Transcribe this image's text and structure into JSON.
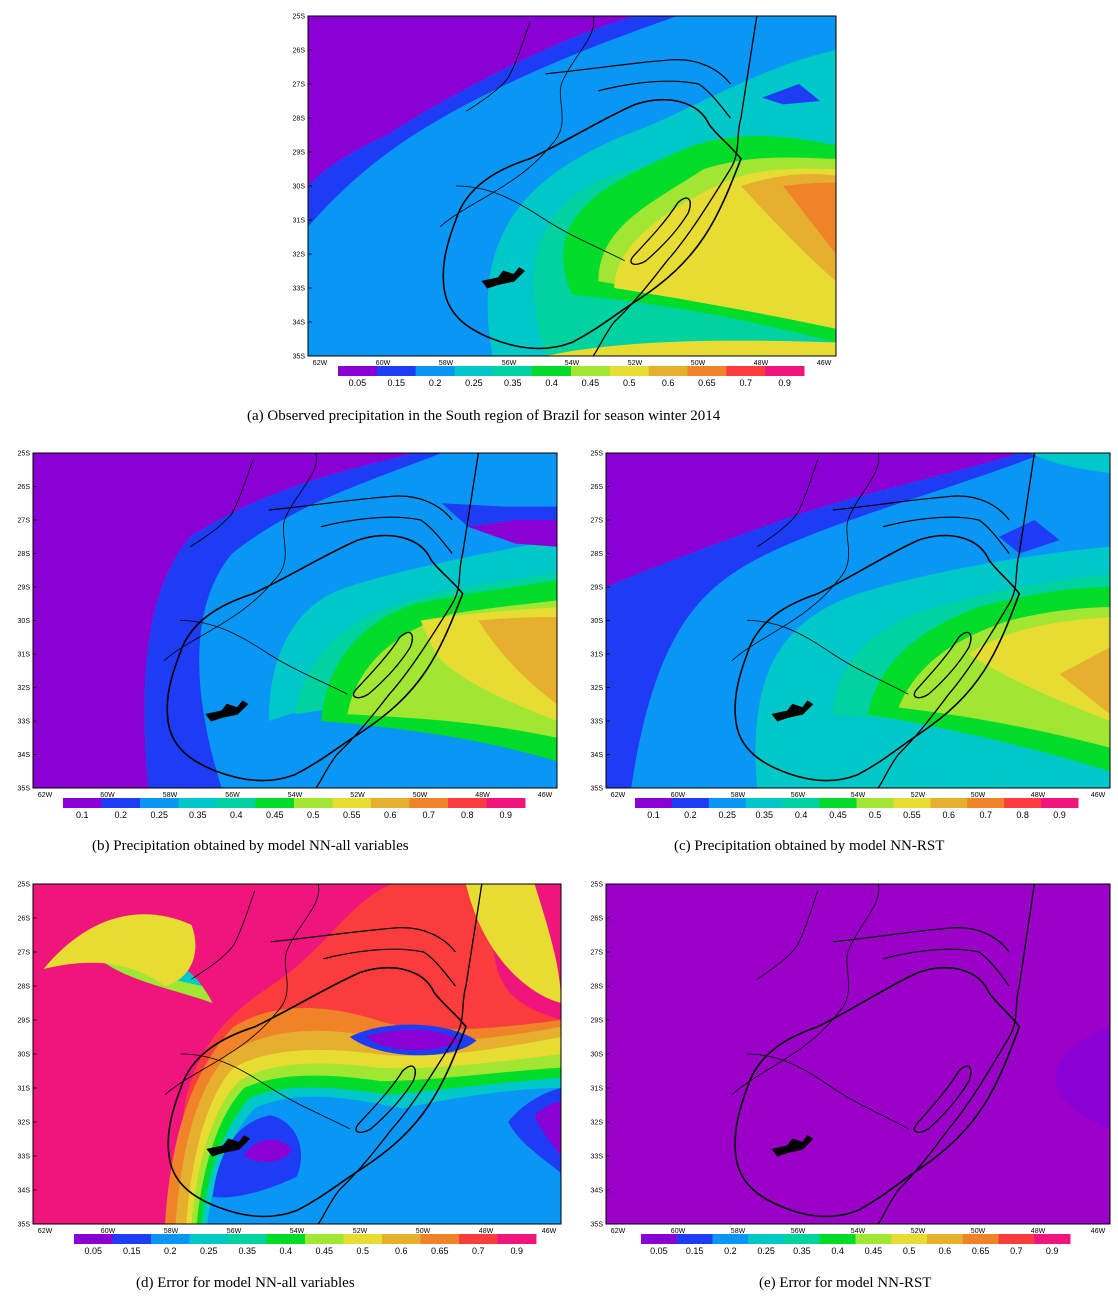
{
  "lat_labels": [
    "25S",
    "26S",
    "27S",
    "28S",
    "29S",
    "30S",
    "31S",
    "32S",
    "33S",
    "34S",
    "35S"
  ],
  "lon_labels": [
    "62W",
    "60W",
    "58W",
    "56W",
    "54W",
    "52W",
    "50W",
    "48W",
    "46W"
  ],
  "palette": {
    "purple": "#8a00d4",
    "deep_purple": "#9a00c8",
    "blue": "#1f3cf5",
    "sky": "#0a96f5",
    "cyan": "#00c8c8",
    "teal": "#00d2a0",
    "green": "#00dc28",
    "lime": "#a0e632",
    "yellow": "#e6dc32",
    "gold": "#e6af2d",
    "orange": "#f08228",
    "red": "#fa3c3c",
    "pink": "#f0147d"
  },
  "panels": [
    {
      "id": "a",
      "caption": "(a) Observed precipitation in the South region of Brazil for season winter 2014",
      "colorbar": {
        "labels": [
          "0.05",
          "0.15",
          "0.2",
          "0.25",
          "0.35",
          "0.4",
          "0.45",
          "0.5",
          "0.6",
          "0.65",
          "0.7",
          "0.9"
        ],
        "colors": [
          "#8a00d4",
          "#1f3cf5",
          "#0a96f5",
          "#00c8c8",
          "#00d2a0",
          "#00dc28",
          "#a0e632",
          "#e6dc32",
          "#e6af2d",
          "#f08228",
          "#fa3c3c",
          "#f0147d"
        ]
      }
    },
    {
      "id": "b",
      "caption": "(b) Precipitation obtained by model NN-all variables",
      "colorbar": {
        "labels": [
          "0.1",
          "0.2",
          "0.25",
          "0.35",
          "0.4",
          "0.45",
          "0.5",
          "0.55",
          "0.6",
          "0.7",
          "0.8",
          "0.9"
        ],
        "colors": [
          "#8a00d4",
          "#1f3cf5",
          "#0a96f5",
          "#00c8c8",
          "#00d2a0",
          "#00dc28",
          "#a0e632",
          "#e6dc32",
          "#e6af2d",
          "#f08228",
          "#fa3c3c",
          "#f0147d"
        ]
      }
    },
    {
      "id": "c",
      "caption": "(c) Precipitation obtained by model NN-RST",
      "colorbar": {
        "labels": [
          "0.1",
          "0.2",
          "0.25",
          "0.35",
          "0.4",
          "0.45",
          "0.5",
          "0.55",
          "0.6",
          "0.7",
          "0.8",
          "0.9"
        ],
        "colors": [
          "#8a00d4",
          "#1f3cf5",
          "#0a96f5",
          "#00c8c8",
          "#00d2a0",
          "#00dc28",
          "#a0e632",
          "#e6dc32",
          "#e6af2d",
          "#f08228",
          "#fa3c3c",
          "#f0147d"
        ]
      }
    },
    {
      "id": "d",
      "caption": "(d) Error for model NN-all variables",
      "colorbar": {
        "labels": [
          "0.05",
          "0.15",
          "0.2",
          "0.25",
          "0.35",
          "0.4",
          "0.45",
          "0.5",
          "0.6",
          "0.65",
          "0.7",
          "0.9"
        ],
        "colors": [
          "#8a00d4",
          "#1f3cf5",
          "#0a96f5",
          "#00c8c8",
          "#00d2a0",
          "#00dc28",
          "#a0e632",
          "#e6dc32",
          "#e6af2d",
          "#f08228",
          "#fa3c3c",
          "#f0147d"
        ]
      }
    },
    {
      "id": "e",
      "caption": "(e) Error for model NN-RST",
      "colorbar": {
        "labels": [
          "0.05",
          "0.15",
          "0.2",
          "0.25",
          "0.35",
          "0.4",
          "0.45",
          "0.5",
          "0.6",
          "0.65",
          "0.7",
          "0.9"
        ],
        "colors": [
          "#8a00d4",
          "#1f3cf5",
          "#0a96f5",
          "#00c8c8",
          "#00d2a0",
          "#00dc28",
          "#a0e632",
          "#e6dc32",
          "#e6af2d",
          "#f08228",
          "#fa3c3c",
          "#f0147d"
        ]
      }
    }
  ]
}
